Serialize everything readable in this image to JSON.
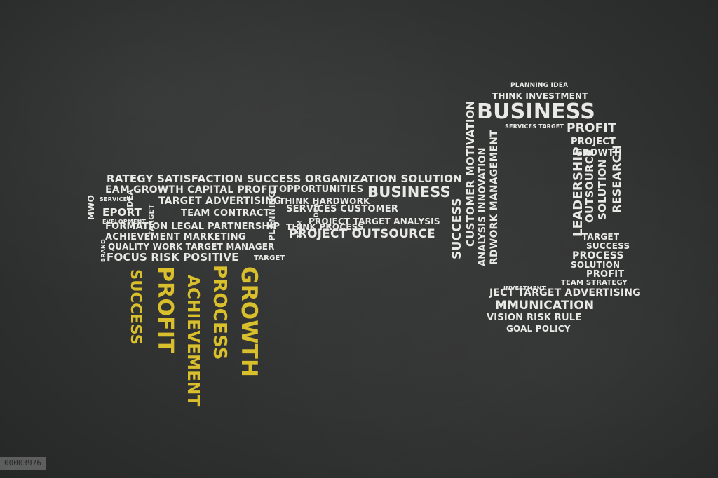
{
  "colors": {
    "chalkboard": "#333434",
    "chalk_white": "#e9e9e6",
    "chalk_yellow": "#d9bf2c"
  },
  "rows": [
    {
      "name": "row-1",
      "text": "RATEGY SATISFACTION SUCCESS ORGANIZATION SOLUTION"
    },
    {
      "name": "row-2a",
      "text": "EAM GROWTH CAPITAL PROFIT"
    },
    {
      "name": "row-2b",
      "text": "OPPORTUNITIES"
    },
    {
      "name": "row-2c",
      "text": "BUSINESS"
    },
    {
      "name": "row-3a",
      "text": "SERVICES"
    },
    {
      "name": "row-3b",
      "text": "TARGET ADVERTISING"
    },
    {
      "name": "row-3c",
      "text": "THINK HARDWORK"
    },
    {
      "name": "row-4a",
      "text": "EPORT"
    },
    {
      "name": "row-4b",
      "text": "TEAM CONTRACT"
    },
    {
      "name": "row-4c",
      "text": "SERVICES CUSTOMER"
    },
    {
      "name": "row-5a",
      "text": "EVELOPMENT"
    },
    {
      "name": "row-5b",
      "text": "PROJECT TARGET ANALYSIS"
    },
    {
      "name": "row-6a",
      "text": "FORMATION LEGAL PARTNERSHIP"
    },
    {
      "name": "row-6b",
      "text": "THINK PROCESS"
    },
    {
      "name": "row-7a",
      "text": "ACHIEVEMENT MARKETING"
    },
    {
      "name": "row-7b",
      "text": "PROJECT OUTSOURCE"
    },
    {
      "name": "row-8",
      "text": "QUALITY WORK TARGET MANAGER"
    },
    {
      "name": "row-9a",
      "text": "FOCUS RISK POSITIVE"
    },
    {
      "name": "row-9b",
      "text": "TARGET"
    },
    {
      "name": "ring-1",
      "text": "PLANNING IDEA"
    },
    {
      "name": "ring-2",
      "text": "THINK INVESTMENT"
    },
    {
      "name": "ring-3",
      "text": "BUSINESS"
    },
    {
      "name": "ring-4",
      "text": "SERVICES TARGET"
    },
    {
      "name": "ring-5",
      "text": "PROFIT"
    },
    {
      "name": "ring-6",
      "text": "PROJECT"
    },
    {
      "name": "ring-7",
      "text": "GROWTH"
    },
    {
      "name": "ring-8",
      "text": "TARGET"
    },
    {
      "name": "ring-9",
      "text": "SUCCESS"
    },
    {
      "name": "ring-10",
      "text": "PROCESS"
    },
    {
      "name": "ring-11",
      "text": "SOLUTION"
    },
    {
      "name": "ring-12",
      "text": "PROFIT"
    },
    {
      "name": "ring-13",
      "text": "TEAM STRATEGY"
    },
    {
      "name": "ring-14",
      "text": "INVESTMENT"
    },
    {
      "name": "ring-15",
      "text": "JECT TARGET ADVERTISING"
    },
    {
      "name": "ring-16",
      "text": "MMUNICATION"
    },
    {
      "name": "ring-17",
      "text": "VISION  RISK  RULE"
    },
    {
      "name": "ring-18",
      "text": "GOAL POLICY"
    }
  ],
  "verticals": [
    {
      "name": "v-mwo",
      "text": "MWO"
    },
    {
      "name": "v-idea",
      "text": "IDEA"
    },
    {
      "name": "v-target",
      "text": "TARGET"
    },
    {
      "name": "v-planning",
      "text": "PLANNING"
    },
    {
      "name": "v-team",
      "text": "TEAM"
    },
    {
      "name": "v-idea2",
      "text": "IDEA"
    },
    {
      "name": "v-success",
      "text": "SUCCESS"
    },
    {
      "name": "v-brand",
      "text": "BRAND"
    },
    {
      "name": "v-customer-motivation",
      "text": "CUSTOMER MOTIVATION"
    },
    {
      "name": "v-analysis-innovation",
      "text": "ANALYSIS INNOVATION"
    },
    {
      "name": "v-hardwork-management",
      "text": "RDWORK MANAGEMENT"
    },
    {
      "name": "v-leadership",
      "text": "LEADERSHIP"
    },
    {
      "name": "v-outsource",
      "text": "OUTSOURCE"
    },
    {
      "name": "v-solution",
      "text": "SOLUTION"
    },
    {
      "name": "v-research",
      "text": "RESEARCH"
    }
  ],
  "teeth": [
    {
      "name": "tooth-success",
      "text": "SUCCESS"
    },
    {
      "name": "tooth-profit",
      "text": "PROFIT"
    },
    {
      "name": "tooth-achievement",
      "text": "ACHIEVEMENT"
    },
    {
      "name": "tooth-process",
      "text": "PROCESS"
    },
    {
      "name": "tooth-growth",
      "text": "GROWTH"
    }
  ],
  "watermark": "00003976"
}
